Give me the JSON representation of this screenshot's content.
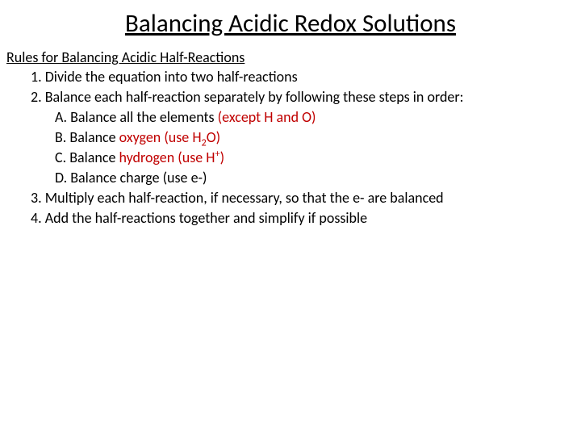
{
  "title": "Balancing Acidic Redox Solutions",
  "subheading": "Rules for Balancing Acidic Half-Reactions",
  "rules": {
    "r1": "1.  Divide the equation into two half-reactions",
    "r2": "2.  Balance each half-reaction separately by following these steps in order:",
    "r2a_pre": "A.  Balance all the elements ",
    "r2a_red": "(except H and O)",
    "r2b_pre": "B.  Balance ",
    "r2b_red": "oxygen (use H",
    "r2b_red2": "O)",
    "r2c_pre": "C.  Balance ",
    "r2c_red": "hydrogen (use H",
    "r2c_red2": ")",
    "r2d": "D.  Balance charge (use e-)",
    "r3": "3.  Multiply each half-reaction, if necessary, so that the e- are balanced",
    "r4": "4.  Add the half-reactions together and simplify if possible"
  },
  "colors": {
    "text": "#000000",
    "accent": "#c00000",
    "background": "#ffffff"
  },
  "font_family": "Calibri",
  "title_fontsize": 31,
  "body_fontsize": 18
}
